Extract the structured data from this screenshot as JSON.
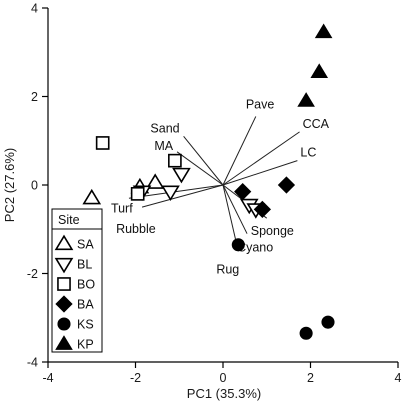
{
  "chart_data": {
    "type": "scatter",
    "title": "",
    "xlabel": "PC1 (35.3%)",
    "ylabel": "PC2 (27.6%)",
    "xlim": [
      -4,
      4
    ],
    "ylim": [
      -4,
      4
    ],
    "xticks": [
      "-4",
      "-2",
      "0",
      "2",
      "4"
    ],
    "yticks": [
      "-4",
      "-2",
      "0",
      "2",
      "4"
    ],
    "grid": false,
    "legend": {
      "title": "Site",
      "placement": "bottom-left",
      "entries": [
        {
          "label": "SA",
          "marker": "triangle-up-open"
        },
        {
          "label": "BL",
          "marker": "triangle-down-open"
        },
        {
          "label": "BO",
          "marker": "square-open"
        },
        {
          "label": "BA",
          "marker": "diamond-filled"
        },
        {
          "label": "KS",
          "marker": "circle-filled"
        },
        {
          "label": "KP",
          "marker": "triangle-up-filled"
        }
      ]
    },
    "series": [
      {
        "name": "SA",
        "marker": "triangle-up-open",
        "points": [
          [
            -3.0,
            -0.3
          ],
          [
            -1.9,
            -0.05
          ],
          [
            -1.55,
            0.05
          ]
        ]
      },
      {
        "name": "BL",
        "marker": "triangle-down-open",
        "points": [
          [
            -1.85,
            -0.15
          ],
          [
            -1.2,
            -0.15
          ],
          [
            -0.95,
            0.25
          ],
          [
            0.6,
            -0.45
          ],
          [
            0.75,
            -0.55
          ]
        ]
      },
      {
        "name": "BO",
        "marker": "square-open",
        "points": [
          [
            -2.75,
            0.95
          ],
          [
            -1.95,
            -0.2
          ],
          [
            -1.1,
            0.55
          ]
        ]
      },
      {
        "name": "BA",
        "marker": "diamond-filled",
        "points": [
          [
            0.45,
            -0.15
          ],
          [
            0.9,
            -0.55
          ],
          [
            1.45,
            0.0
          ]
        ]
      },
      {
        "name": "KS",
        "marker": "circle-filled",
        "points": [
          [
            0.35,
            -1.35
          ],
          [
            1.9,
            -3.35
          ],
          [
            2.4,
            -3.1
          ]
        ]
      },
      {
        "name": "KP",
        "marker": "triangle-up-filled",
        "points": [
          [
            1.9,
            1.9
          ],
          [
            2.2,
            2.55
          ],
          [
            2.3,
            3.45
          ]
        ]
      }
    ],
    "vectors": [
      {
        "label": "Pave",
        "x": 0.75,
        "y": 1.55
      },
      {
        "label": "CCA",
        "x": 1.75,
        "y": 1.2
      },
      {
        "label": "LC",
        "x": 1.7,
        "y": 0.55
      },
      {
        "label": "Sand",
        "x": -0.9,
        "y": 1.1
      },
      {
        "label": "MA",
        "x": -1.05,
        "y": 0.75
      },
      {
        "label": "Turf",
        "x": -2.15,
        "y": -0.3
      },
      {
        "label": "Rubble",
        "x": -1.85,
        "y": -0.5
      },
      {
        "label": "Sponge",
        "x": 1.0,
        "y": -0.75
      },
      {
        "label": "Cyano",
        "x": 0.55,
        "y": -1.1
      },
      {
        "label": "Rug",
        "x": 0.35,
        "y": -1.5
      }
    ]
  }
}
